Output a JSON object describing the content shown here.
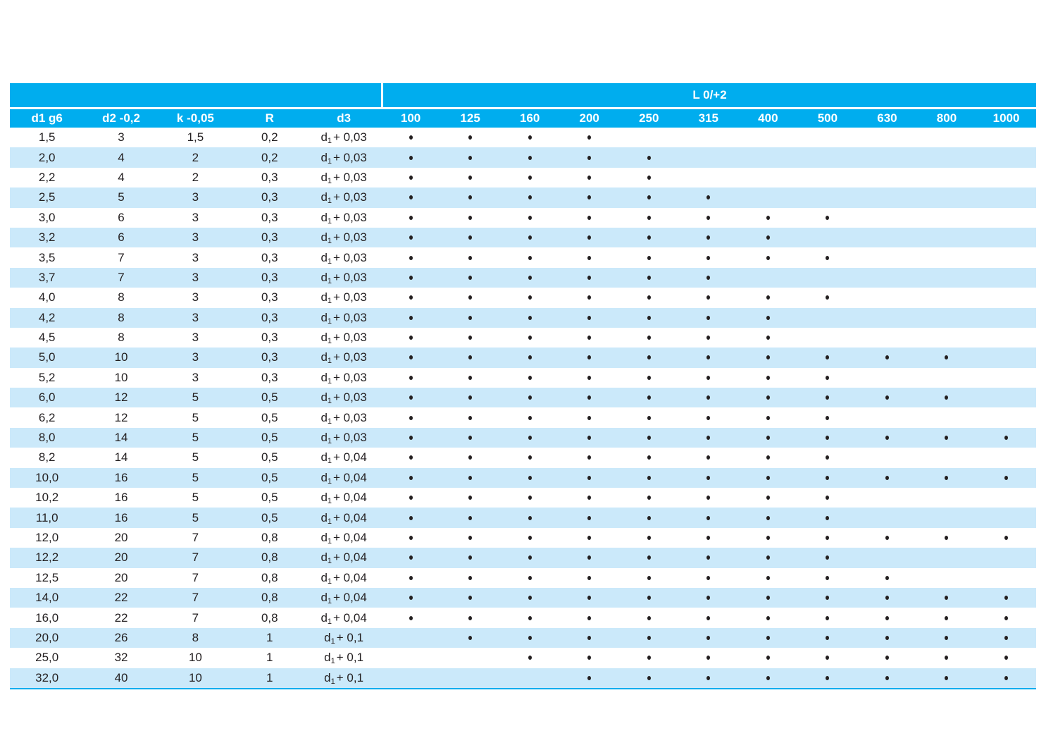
{
  "colors": {
    "header_cyan": "#00ADEE",
    "row_stripe": "#CBE9FA",
    "row_white": "#FFFFFF",
    "header_text": "#FFFFFF",
    "body_text": "#231F20"
  },
  "table": {
    "span_header": "L 0/+2",
    "left_headers": [
      "d1 g6",
      "d2 -0,2",
      "k -0,05",
      "R",
      "d3"
    ],
    "length_columns": [
      "100",
      "125",
      "160",
      "200",
      "250",
      "315",
      "400",
      "500",
      "630",
      "800",
      "1000"
    ],
    "d3_format": {
      "base": "d",
      "sub": "1",
      "plus": "+"
    },
    "dot_symbol": "•",
    "rows": [
      {
        "d1": "1,5",
        "d2": "3",
        "k": "1,5",
        "r": "0,2",
        "d3_add": "0,03",
        "lengths": [
          "100",
          "125",
          "160",
          "200"
        ]
      },
      {
        "d1": "2,0",
        "d2": "4",
        "k": "2",
        "r": "0,2",
        "d3_add": "0,03",
        "lengths": [
          "100",
          "125",
          "160",
          "200",
          "250"
        ]
      },
      {
        "d1": "2,2",
        "d2": "4",
        "k": "2",
        "r": "0,3",
        "d3_add": "0,03",
        "lengths": [
          "100",
          "125",
          "160",
          "200",
          "250"
        ]
      },
      {
        "d1": "2,5",
        "d2": "5",
        "k": "3",
        "r": "0,3",
        "d3_add": "0,03",
        "lengths": [
          "100",
          "125",
          "160",
          "200",
          "250",
          "315"
        ]
      },
      {
        "d1": "3,0",
        "d2": "6",
        "k": "3",
        "r": "0,3",
        "d3_add": "0,03",
        "lengths": [
          "100",
          "125",
          "160",
          "200",
          "250",
          "315",
          "400",
          "500"
        ]
      },
      {
        "d1": "3,2",
        "d2": "6",
        "k": "3",
        "r": "0,3",
        "d3_add": "0,03",
        "lengths": [
          "100",
          "125",
          "160",
          "200",
          "250",
          "315",
          "400"
        ]
      },
      {
        "d1": "3,5",
        "d2": "7",
        "k": "3",
        "r": "0,3",
        "d3_add": "0,03",
        "lengths": [
          "100",
          "125",
          "160",
          "200",
          "250",
          "315",
          "400",
          "500"
        ]
      },
      {
        "d1": "3,7",
        "d2": "7",
        "k": "3",
        "r": "0,3",
        "d3_add": "0,03",
        "lengths": [
          "100",
          "125",
          "160",
          "200",
          "250",
          "315"
        ]
      },
      {
        "d1": "4,0",
        "d2": "8",
        "k": "3",
        "r": "0,3",
        "d3_add": "0,03",
        "lengths": [
          "100",
          "125",
          "160",
          "200",
          "250",
          "315",
          "400",
          "500"
        ]
      },
      {
        "d1": "4,2",
        "d2": "8",
        "k": "3",
        "r": "0,3",
        "d3_add": "0,03",
        "lengths": [
          "100",
          "125",
          "160",
          "200",
          "250",
          "315",
          "400"
        ]
      },
      {
        "d1": "4,5",
        "d2": "8",
        "k": "3",
        "r": "0,3",
        "d3_add": "0,03",
        "lengths": [
          "100",
          "125",
          "160",
          "200",
          "250",
          "315",
          "400"
        ]
      },
      {
        "d1": "5,0",
        "d2": "10",
        "k": "3",
        "r": "0,3",
        "d3_add": "0,03",
        "lengths": [
          "100",
          "125",
          "160",
          "200",
          "250",
          "315",
          "400",
          "500",
          "630",
          "800"
        ]
      },
      {
        "d1": "5,2",
        "d2": "10",
        "k": "3",
        "r": "0,3",
        "d3_add": "0,03",
        "lengths": [
          "100",
          "125",
          "160",
          "200",
          "250",
          "315",
          "400",
          "500"
        ]
      },
      {
        "d1": "6,0",
        "d2": "12",
        "k": "5",
        "r": "0,5",
        "d3_add": "0,03",
        "lengths": [
          "100",
          "125",
          "160",
          "200",
          "250",
          "315",
          "400",
          "500",
          "630",
          "800"
        ]
      },
      {
        "d1": "6,2",
        "d2": "12",
        "k": "5",
        "r": "0,5",
        "d3_add": "0,03",
        "lengths": [
          "100",
          "125",
          "160",
          "200",
          "250",
          "315",
          "400",
          "500"
        ]
      },
      {
        "d1": "8,0",
        "d2": "14",
        "k": "5",
        "r": "0,5",
        "d3_add": "0,03",
        "lengths": [
          "100",
          "125",
          "160",
          "200",
          "250",
          "315",
          "400",
          "500",
          "630",
          "800",
          "1000"
        ]
      },
      {
        "d1": "8,2",
        "d2": "14",
        "k": "5",
        "r": "0,5",
        "d3_add": "0,04",
        "lengths": [
          "100",
          "125",
          "160",
          "200",
          "250",
          "315",
          "400",
          "500"
        ]
      },
      {
        "d1": "10,0",
        "d2": "16",
        "k": "5",
        "r": "0,5",
        "d3_add": "0,04",
        "lengths": [
          "100",
          "125",
          "160",
          "200",
          "250",
          "315",
          "400",
          "500",
          "630",
          "800",
          "1000"
        ]
      },
      {
        "d1": "10,2",
        "d2": "16",
        "k": "5",
        "r": "0,5",
        "d3_add": "0,04",
        "lengths": [
          "100",
          "125",
          "160",
          "200",
          "250",
          "315",
          "400",
          "500"
        ]
      },
      {
        "d1": "11,0",
        "d2": "16",
        "k": "5",
        "r": "0,5",
        "d3_add": "0,04",
        "lengths": [
          "100",
          "125",
          "160",
          "200",
          "250",
          "315",
          "400",
          "500"
        ]
      },
      {
        "d1": "12,0",
        "d2": "20",
        "k": "7",
        "r": "0,8",
        "d3_add": "0,04",
        "lengths": [
          "100",
          "125",
          "160",
          "200",
          "250",
          "315",
          "400",
          "500",
          "630",
          "800",
          "1000"
        ]
      },
      {
        "d1": "12,2",
        "d2": "20",
        "k": "7",
        "r": "0,8",
        "d3_add": "0,04",
        "lengths": [
          "100",
          "125",
          "160",
          "200",
          "250",
          "315",
          "400",
          "500"
        ]
      },
      {
        "d1": "12,5",
        "d2": "20",
        "k": "7",
        "r": "0,8",
        "d3_add": "0,04",
        "lengths": [
          "100",
          "125",
          "160",
          "200",
          "250",
          "315",
          "400",
          "500",
          "630"
        ]
      },
      {
        "d1": "14,0",
        "d2": "22",
        "k": "7",
        "r": "0,8",
        "d3_add": "0,04",
        "lengths": [
          "100",
          "125",
          "160",
          "200",
          "250",
          "315",
          "400",
          "500",
          "630",
          "800",
          "1000"
        ]
      },
      {
        "d1": "16,0",
        "d2": "22",
        "k": "7",
        "r": "0,8",
        "d3_add": "0,04",
        "lengths": [
          "100",
          "125",
          "160",
          "200",
          "250",
          "315",
          "400",
          "500",
          "630",
          "800",
          "1000"
        ]
      },
      {
        "d1": "20,0",
        "d2": "26",
        "k": "8",
        "r": "1",
        "d3_add": "0,1",
        "lengths": [
          "125",
          "160",
          "200",
          "250",
          "315",
          "400",
          "500",
          "630",
          "800",
          "1000"
        ]
      },
      {
        "d1": "25,0",
        "d2": "32",
        "k": "10",
        "r": "1",
        "d3_add": "0,1",
        "lengths": [
          "160",
          "200",
          "250",
          "315",
          "400",
          "500",
          "630",
          "800",
          "1000"
        ]
      },
      {
        "d1": "32,0",
        "d2": "40",
        "k": "10",
        "r": "1",
        "d3_add": "0,1",
        "lengths": [
          "200",
          "250",
          "315",
          "400",
          "500",
          "630",
          "800",
          "1000"
        ]
      }
    ]
  }
}
